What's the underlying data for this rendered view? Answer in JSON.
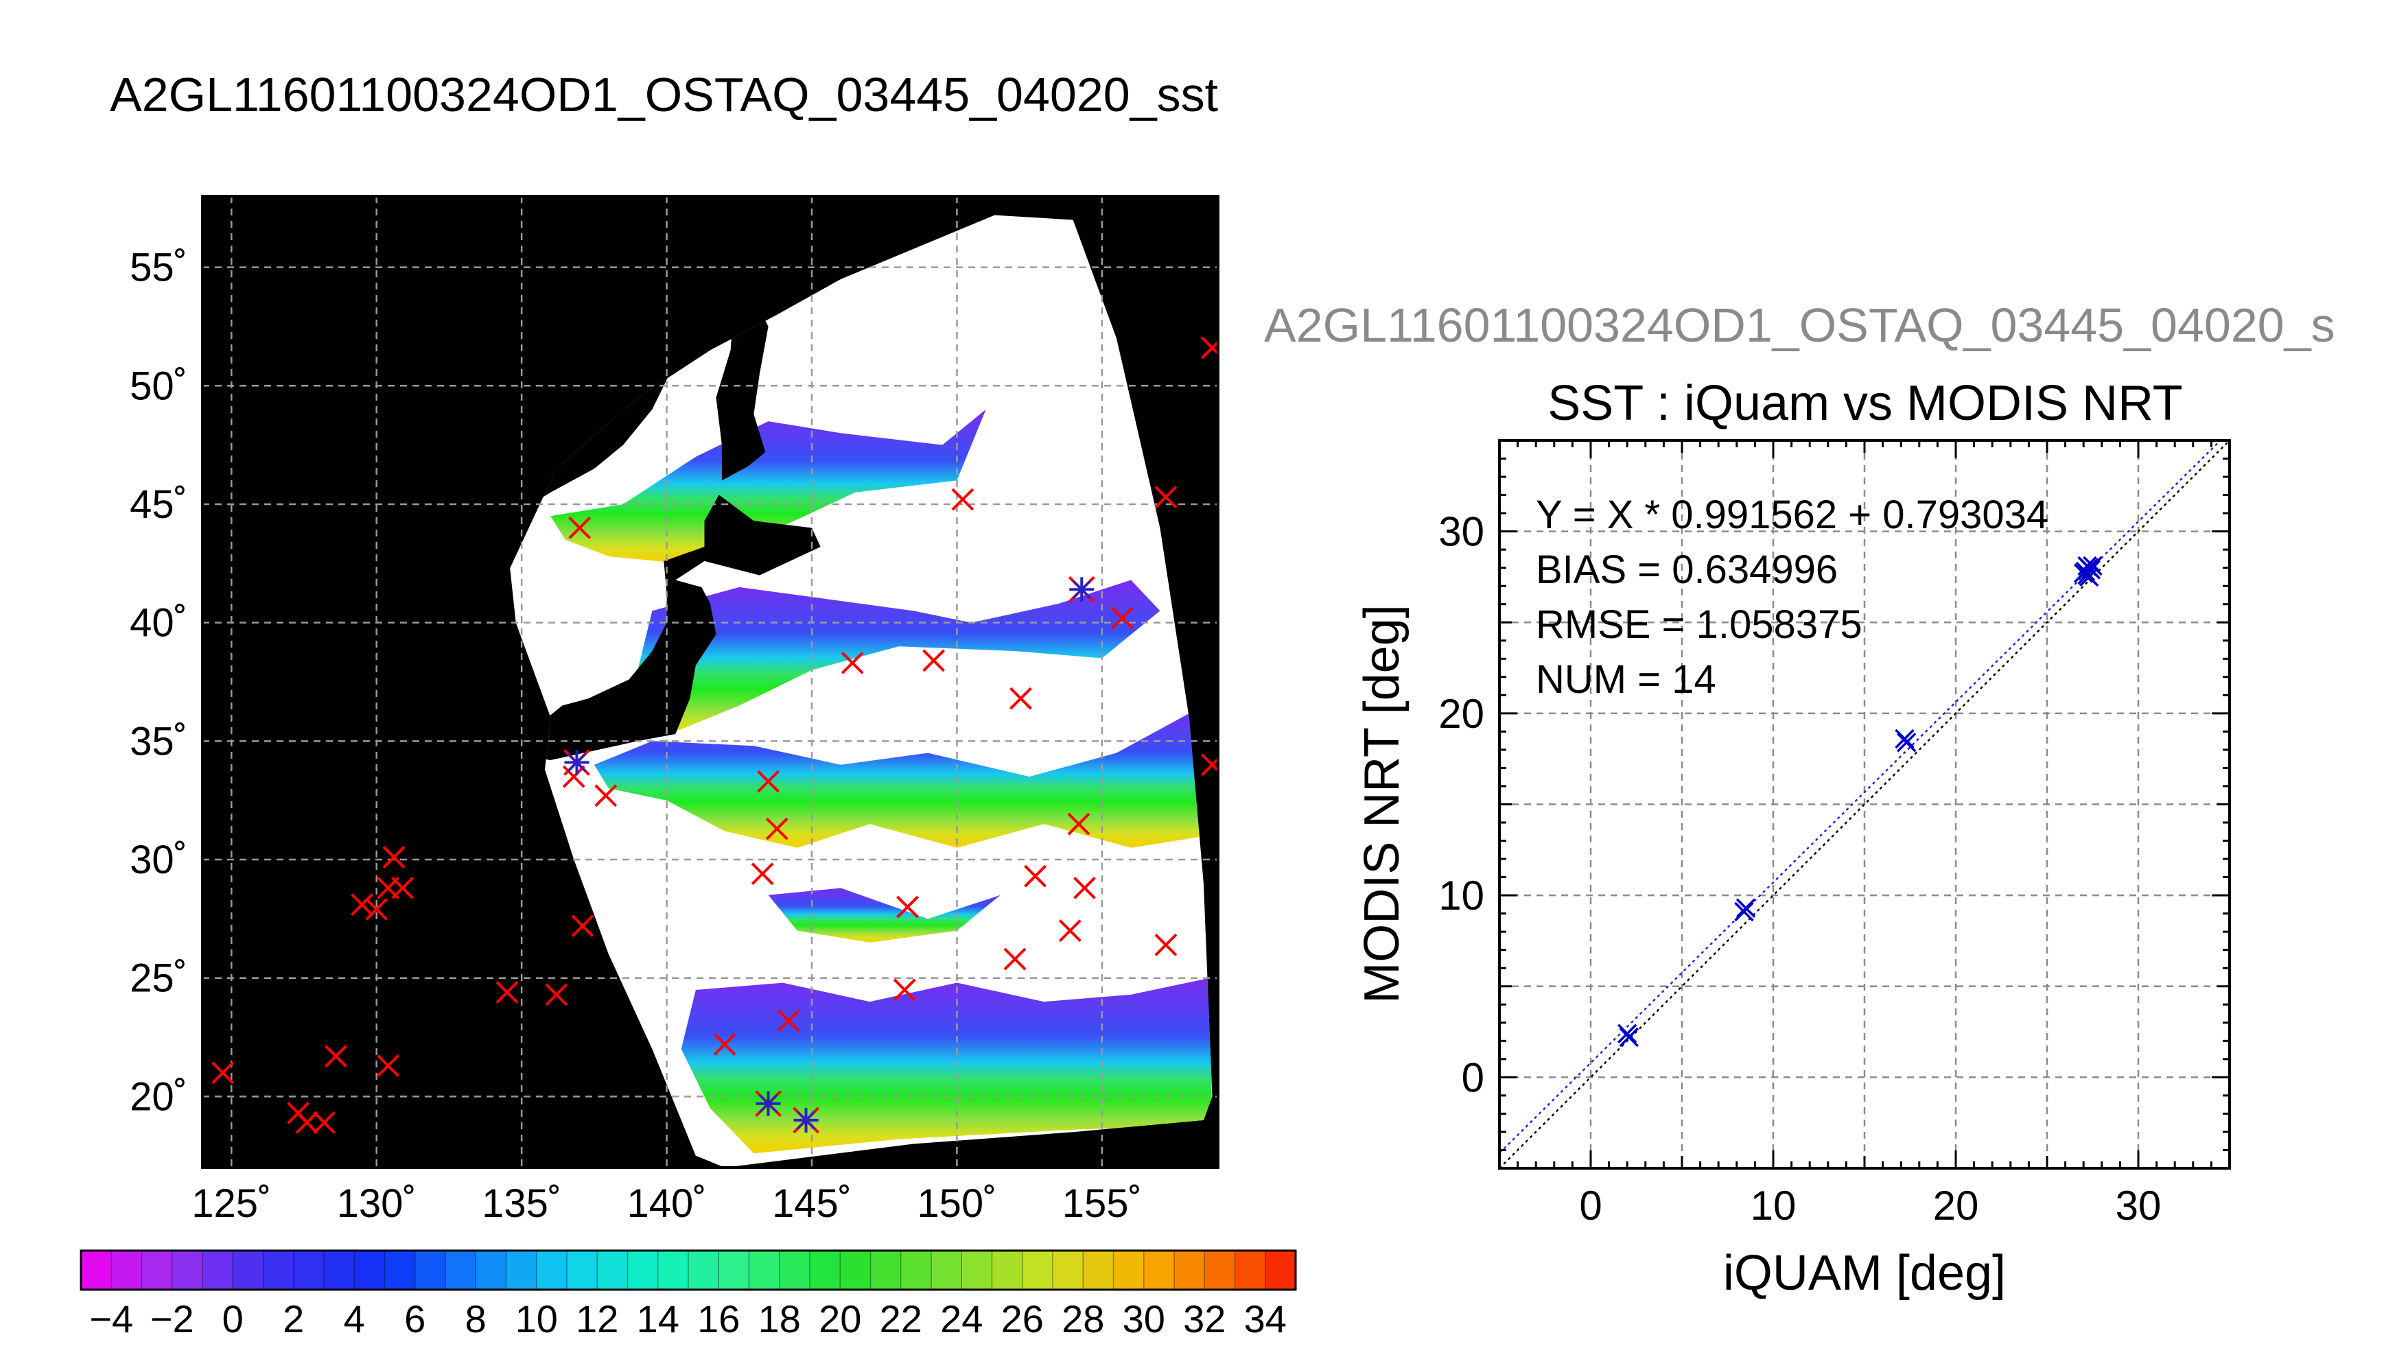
{
  "map": {
    "title": "A2GL11601100324OD1_OSTAQ_03445_04020_sst",
    "lon_range": [
      124,
      159
    ],
    "lat_range": [
      17,
      58
    ],
    "lon_ticks": [
      125,
      130,
      135,
      140,
      145,
      150,
      155
    ],
    "lat_ticks": [
      20,
      25,
      30,
      35,
      40,
      45,
      50,
      55
    ],
    "lon_labels": [
      "125˚",
      "130˚",
      "135˚",
      "140˚",
      "145˚",
      "150˚",
      "155˚"
    ],
    "lat_labels": [
      "20˚",
      "25˚",
      "30˚",
      "35˚",
      "40˚",
      "45˚",
      "50˚",
      "55˚"
    ],
    "grid": true,
    "background": "#000000",
    "ocean_color": "#ffffff",
    "iquam_marker_color": "#ff0000",
    "match_marker_color": "#2222cc",
    "iquam_points": [
      [
        124.7,
        21.0
      ],
      [
        127.3,
        19.3
      ],
      [
        127.6,
        18.9
      ],
      [
        128.2,
        18.9
      ],
      [
        128.6,
        21.7
      ],
      [
        129.5,
        28.1
      ],
      [
        130.0,
        27.9
      ],
      [
        130.4,
        28.8
      ],
      [
        130.6,
        30.1
      ],
      [
        130.9,
        28.8
      ],
      [
        130.4,
        21.3
      ],
      [
        134.5,
        24.4
      ],
      [
        136.2,
        24.3
      ],
      [
        137.1,
        27.2
      ],
      [
        136.8,
        33.5
      ],
      [
        137.0,
        44.0
      ],
      [
        137.9,
        32.7
      ],
      [
        142.0,
        22.2
      ],
      [
        143.3,
        29.4
      ],
      [
        143.5,
        33.3
      ],
      [
        143.8,
        31.3
      ],
      [
        144.2,
        23.2
      ],
      [
        146.4,
        38.3
      ],
      [
        148.3,
        28.0
      ],
      [
        148.2,
        24.5
      ],
      [
        149.2,
        38.4
      ],
      [
        150.2,
        45.2
      ],
      [
        152.0,
        25.8
      ],
      [
        152.2,
        36.8
      ],
      [
        152.7,
        29.3
      ],
      [
        153.9,
        27.0
      ],
      [
        154.2,
        31.5
      ],
      [
        154.4,
        28.8
      ],
      [
        155.7,
        40.2
      ],
      [
        157.2,
        45.3
      ],
      [
        157.2,
        26.4
      ],
      [
        158.8,
        51.6
      ],
      [
        158.8,
        34.0
      ]
    ],
    "match_points": [
      [
        136.9,
        34.1
      ],
      [
        143.5,
        19.7
      ],
      [
        144.8,
        19.0
      ],
      [
        154.3,
        41.4
      ]
    ]
  },
  "colorbar": {
    "min": -5,
    "max": 35,
    "step": 2,
    "tick_values": [
      -4,
      -2,
      0,
      2,
      4,
      6,
      8,
      10,
      12,
      14,
      16,
      18,
      20,
      22,
      24,
      26,
      28,
      30,
      32,
      34
    ],
    "tick_labels": [
      "−4",
      "−2",
      "0",
      "2",
      "4",
      "6",
      "8",
      "10",
      "12",
      "14",
      "16",
      "18",
      "20",
      "22",
      "24",
      "26",
      "28",
      "30",
      "32",
      "34"
    ]
  },
  "scatter_title": "A2GL11601100324OD1_OSTAQ_03445_04020_s",
  "chart_data": {
    "type": "scatter",
    "title": "SST : iQuam vs MODIS NRT",
    "xlabel": "iQUAM [deg]",
    "ylabel": "MODIS NRT [deg]",
    "xlim": [
      -5,
      35
    ],
    "ylim": [
      -5,
      35
    ],
    "x_ticks": [
      0,
      10,
      20,
      30
    ],
    "y_ticks": [
      0,
      10,
      20,
      30
    ],
    "grid": true,
    "marker_color": "#0000cc",
    "points": [
      [
        2.0,
        2.4
      ],
      [
        2.1,
        2.2
      ],
      [
        8.4,
        9.1
      ],
      [
        8.5,
        9.3
      ],
      [
        17.2,
        18.6
      ],
      [
        17.3,
        18.4
      ],
      [
        27.1,
        27.8
      ],
      [
        27.3,
        28.0
      ],
      [
        27.2,
        27.6
      ],
      [
        27.4,
        27.9
      ],
      [
        27.0,
        27.7
      ],
      [
        27.5,
        28.1
      ],
      [
        27.3,
        27.5
      ],
      [
        27.2,
        28.1
      ]
    ],
    "fit": {
      "slope": 0.991562,
      "intercept": 0.793034
    },
    "annotations": [
      "Y = X * 0.991562 + 0.793034",
      "BIAS = 0.634996",
      "RMSE = 1.058375",
      "NUM = 14"
    ]
  }
}
